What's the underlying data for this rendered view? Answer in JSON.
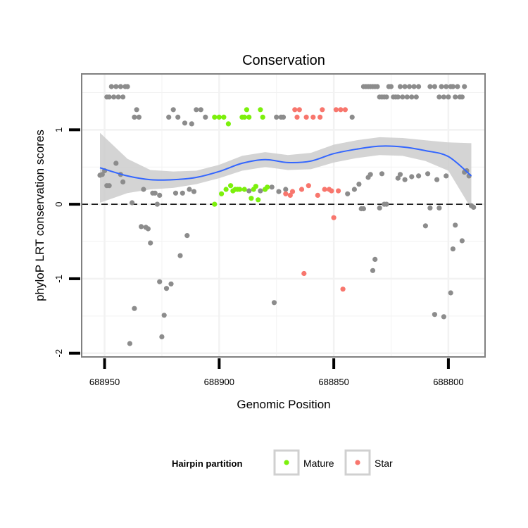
{
  "chart_data": {
    "type": "scatter",
    "title": "Conservation",
    "xlabel": "Genomic Position",
    "ylabel": "phyloP LRT conservation scores",
    "x_reversed": true,
    "xlim": [
      688960,
      688784
    ],
    "ylim": [
      -2.05,
      1.75
    ],
    "x_ticks": [
      688950,
      688900,
      688850,
      688800
    ],
    "x_tick_labels": [
      "688950",
      "688900",
      "688850",
      "688800"
    ],
    "y_ticks": [
      -2,
      -1,
      0,
      1
    ],
    "y_tick_labels": [
      "-2",
      "-1",
      "0",
      "1"
    ],
    "reference_line": {
      "y": 0,
      "style": "dashed"
    },
    "grid": true,
    "legend": {
      "title": "Hairpin partition",
      "position": "bottom",
      "entries": [
        {
          "label": "Mature",
          "color": "#7cf00c"
        },
        {
          "label": "Star",
          "color": "#f8766d"
        }
      ]
    },
    "colors": {
      "other": "#8c8c8c",
      "Mature": "#7cf00c",
      "Star": "#f8766d",
      "smooth": "#3366ff",
      "ribbon": "#d3d3d3",
      "panel_border": "#808080",
      "grid": "#f2f2f2"
    },
    "series": [
      {
        "name": "Other",
        "color": "#8c8c8c",
        "points": [
          [
            688952,
            0.39
          ],
          [
            688951,
            0.4
          ],
          [
            688950,
            0.45
          ],
          [
            688949,
            0.25
          ],
          [
            688948,
            0.25
          ],
          [
            688949,
            1.44
          ],
          [
            688948,
            1.44
          ],
          [
            688947,
            1.58
          ],
          [
            688946,
            1.44
          ],
          [
            688945,
            1.58
          ],
          [
            688944,
            1.44
          ],
          [
            688943,
            1.58
          ],
          [
            688942,
            1.44
          ],
          [
            688941,
            1.58
          ],
          [
            688940,
            1.58
          ],
          [
            688945,
            0.55
          ],
          [
            688943,
            0.4
          ],
          [
            688942,
            0.3
          ],
          [
            688939,
            -1.87
          ],
          [
            688938,
            0.02
          ],
          [
            688937,
            -1.4
          ],
          [
            688937,
            1.17
          ],
          [
            688936,
            1.27
          ],
          [
            688935,
            1.17
          ],
          [
            688934,
            -0.3
          ],
          [
            688933,
            0.2
          ],
          [
            688932,
            -0.31
          ],
          [
            688931,
            -0.33
          ],
          [
            688930,
            -0.52
          ],
          [
            688929,
            0.15
          ],
          [
            688928,
            0.15
          ],
          [
            688927,
            0.0
          ],
          [
            688926,
            -1.04
          ],
          [
            688926,
            0.12
          ],
          [
            688925,
            -1.78
          ],
          [
            688924,
            -1.49
          ],
          [
            688923,
            -1.13
          ],
          [
            688922,
            1.17
          ],
          [
            688921,
            -1.07
          ],
          [
            688920,
            1.27
          ],
          [
            688919,
            0.15
          ],
          [
            688918,
            1.17
          ],
          [
            688917,
            -0.69
          ],
          [
            688916,
            0.15
          ],
          [
            688915,
            1.09
          ],
          [
            688914,
            -0.42
          ],
          [
            688913,
            0.2
          ],
          [
            688912,
            1.08
          ],
          [
            688911,
            0.17
          ],
          [
            688910,
            1.27
          ],
          [
            688908,
            1.27
          ],
          [
            688906,
            1.17
          ],
          [
            688887,
            0.18
          ],
          [
            688882,
            0.18
          ],
          [
            688880,
            0.2
          ],
          [
            688877,
            0.23
          ],
          [
            688876,
            -1.32
          ],
          [
            688875,
            1.17
          ],
          [
            688874,
            0.17
          ],
          [
            688873,
            1.17
          ],
          [
            688872,
            1.17
          ],
          [
            688871,
            0.2
          ],
          [
            688844,
            0.14
          ],
          [
            688842,
            1.17
          ],
          [
            688841,
            0.2
          ],
          [
            688839,
            0.27
          ],
          [
            688838,
            -0.06
          ],
          [
            688837,
            -0.06
          ],
          [
            688835,
            0.36
          ],
          [
            688834,
            0.4
          ],
          [
            688833,
            -0.89
          ],
          [
            688832,
            -0.74
          ],
          [
            688837,
            1.58
          ],
          [
            688836,
            1.58
          ],
          [
            688835,
            1.58
          ],
          [
            688834,
            1.58
          ],
          [
            688833,
            1.58
          ],
          [
            688832,
            1.58
          ],
          [
            688831,
            1.58
          ],
          [
            688830,
            1.44
          ],
          [
            688829,
            1.44
          ],
          [
            688828,
            1.44
          ],
          [
            688827,
            1.44
          ],
          [
            688826,
            1.58
          ],
          [
            688825,
            1.58
          ],
          [
            688824,
            1.44
          ],
          [
            688823,
            1.44
          ],
          [
            688822,
            1.44
          ],
          [
            688821,
            1.58
          ],
          [
            688820,
            1.44
          ],
          [
            688819,
            1.58
          ],
          [
            688818,
            1.44
          ],
          [
            688817,
            1.58
          ],
          [
            688816,
            1.44
          ],
          [
            688815,
            1.58
          ],
          [
            688814,
            1.44
          ],
          [
            688813,
            1.58
          ],
          [
            688830,
            -0.05
          ],
          [
            688829,
            0.41
          ],
          [
            688828,
            0.0
          ],
          [
            688827,
            0.0
          ],
          [
            688822,
            0.35
          ],
          [
            688821,
            0.4
          ],
          [
            688819,
            0.33
          ],
          [
            688816,
            0.37
          ],
          [
            688813,
            0.38
          ],
          [
            688810,
            -0.29
          ],
          [
            688809,
            0.41
          ],
          [
            688808,
            -0.05
          ],
          [
            688808,
            1.58
          ],
          [
            688806,
            1.58
          ],
          [
            688804,
            1.44
          ],
          [
            688803,
            1.58
          ],
          [
            688802,
            1.44
          ],
          [
            688801,
            1.58
          ],
          [
            688800,
            1.44
          ],
          [
            688799,
            1.58
          ],
          [
            688798,
            1.58
          ],
          [
            688797,
            1.44
          ],
          [
            688796,
            1.58
          ],
          [
            688795,
            1.44
          ],
          [
            688794,
            1.44
          ],
          [
            688793,
            1.58
          ],
          [
            688806,
            -1.48
          ],
          [
            688805,
            0.33
          ],
          [
            688804,
            -0.05
          ],
          [
            688802,
            -1.51
          ],
          [
            688801,
            0.38
          ],
          [
            688799,
            -1.19
          ],
          [
            688798,
            -0.6
          ],
          [
            688797,
            -0.28
          ],
          [
            688794,
            -0.49
          ],
          [
            688793,
            0.43
          ],
          [
            688792,
            0.45
          ],
          [
            688791,
            0.38
          ],
          [
            688790,
            -0.02
          ],
          [
            688789,
            -0.04
          ]
        ]
      },
      {
        "name": "Mature",
        "color": "#7cf00c",
        "points": [
          [
            688902,
            1.17
          ],
          [
            688900,
            1.17
          ],
          [
            688899,
            0.14
          ],
          [
            688898,
            1.17
          ],
          [
            688897,
            0.2
          ],
          [
            688896,
            1.08
          ],
          [
            688895,
            0.25
          ],
          [
            688894,
            0.18
          ],
          [
            688893,
            0.2
          ],
          [
            688892,
            0.2
          ],
          [
            688891,
            0.2
          ],
          [
            688890,
            1.17
          ],
          [
            688889,
            1.17
          ],
          [
            688888,
            1.27
          ],
          [
            688887,
            1.17
          ],
          [
            688886,
            0.08
          ],
          [
            688885,
            0.2
          ],
          [
            688884,
            0.24
          ],
          [
            688883,
            0.06
          ],
          [
            688882,
            1.27
          ],
          [
            688881,
            1.17
          ],
          [
            688880,
            0.2
          ],
          [
            688879,
            0.23
          ],
          [
            688902,
            0.0
          ],
          [
            688889,
            0.2
          ]
        ]
      },
      {
        "name": "Star",
        "color": "#f8766d",
        "points": [
          [
            688871,
            0.14
          ],
          [
            688869,
            0.12
          ],
          [
            688868,
            0.17
          ],
          [
            688867,
            1.27
          ],
          [
            688866,
            1.17
          ],
          [
            688865,
            1.27
          ],
          [
            688864,
            0.2
          ],
          [
            688863,
            -0.93
          ],
          [
            688862,
            1.17
          ],
          [
            688861,
            0.25
          ],
          [
            688859,
            1.17
          ],
          [
            688857,
            0.12
          ],
          [
            688856,
            1.17
          ],
          [
            688855,
            1.27
          ],
          [
            688854,
            0.2
          ],
          [
            688852,
            0.2
          ],
          [
            688851,
            0.18
          ],
          [
            688850,
            -0.18
          ],
          [
            688849,
            1.27
          ],
          [
            688848,
            0.18
          ],
          [
            688847,
            1.27
          ],
          [
            688846,
            -1.14
          ],
          [
            688845,
            1.27
          ]
        ]
      }
    ],
    "smooth": {
      "x": [
        688952,
        688940,
        688930,
        688920,
        688910,
        688900,
        688890,
        688880,
        688870,
        688860,
        688850,
        688840,
        688830,
        688820,
        688810,
        688800,
        688790
      ],
      "y": [
        0.49,
        0.38,
        0.33,
        0.33,
        0.36,
        0.44,
        0.55,
        0.6,
        0.56,
        0.58,
        0.68,
        0.74,
        0.78,
        0.77,
        0.72,
        0.64,
        0.38
      ],
      "ymin": [
        0.02,
        0.15,
        0.2,
        0.22,
        0.27,
        0.35,
        0.45,
        0.5,
        0.46,
        0.47,
        0.56,
        0.62,
        0.66,
        0.65,
        0.58,
        0.45,
        -0.06
      ],
      "ymax": [
        0.96,
        0.61,
        0.46,
        0.44,
        0.45,
        0.53,
        0.65,
        0.7,
        0.66,
        0.69,
        0.8,
        0.86,
        0.9,
        0.89,
        0.86,
        0.83,
        0.82
      ]
    }
  }
}
